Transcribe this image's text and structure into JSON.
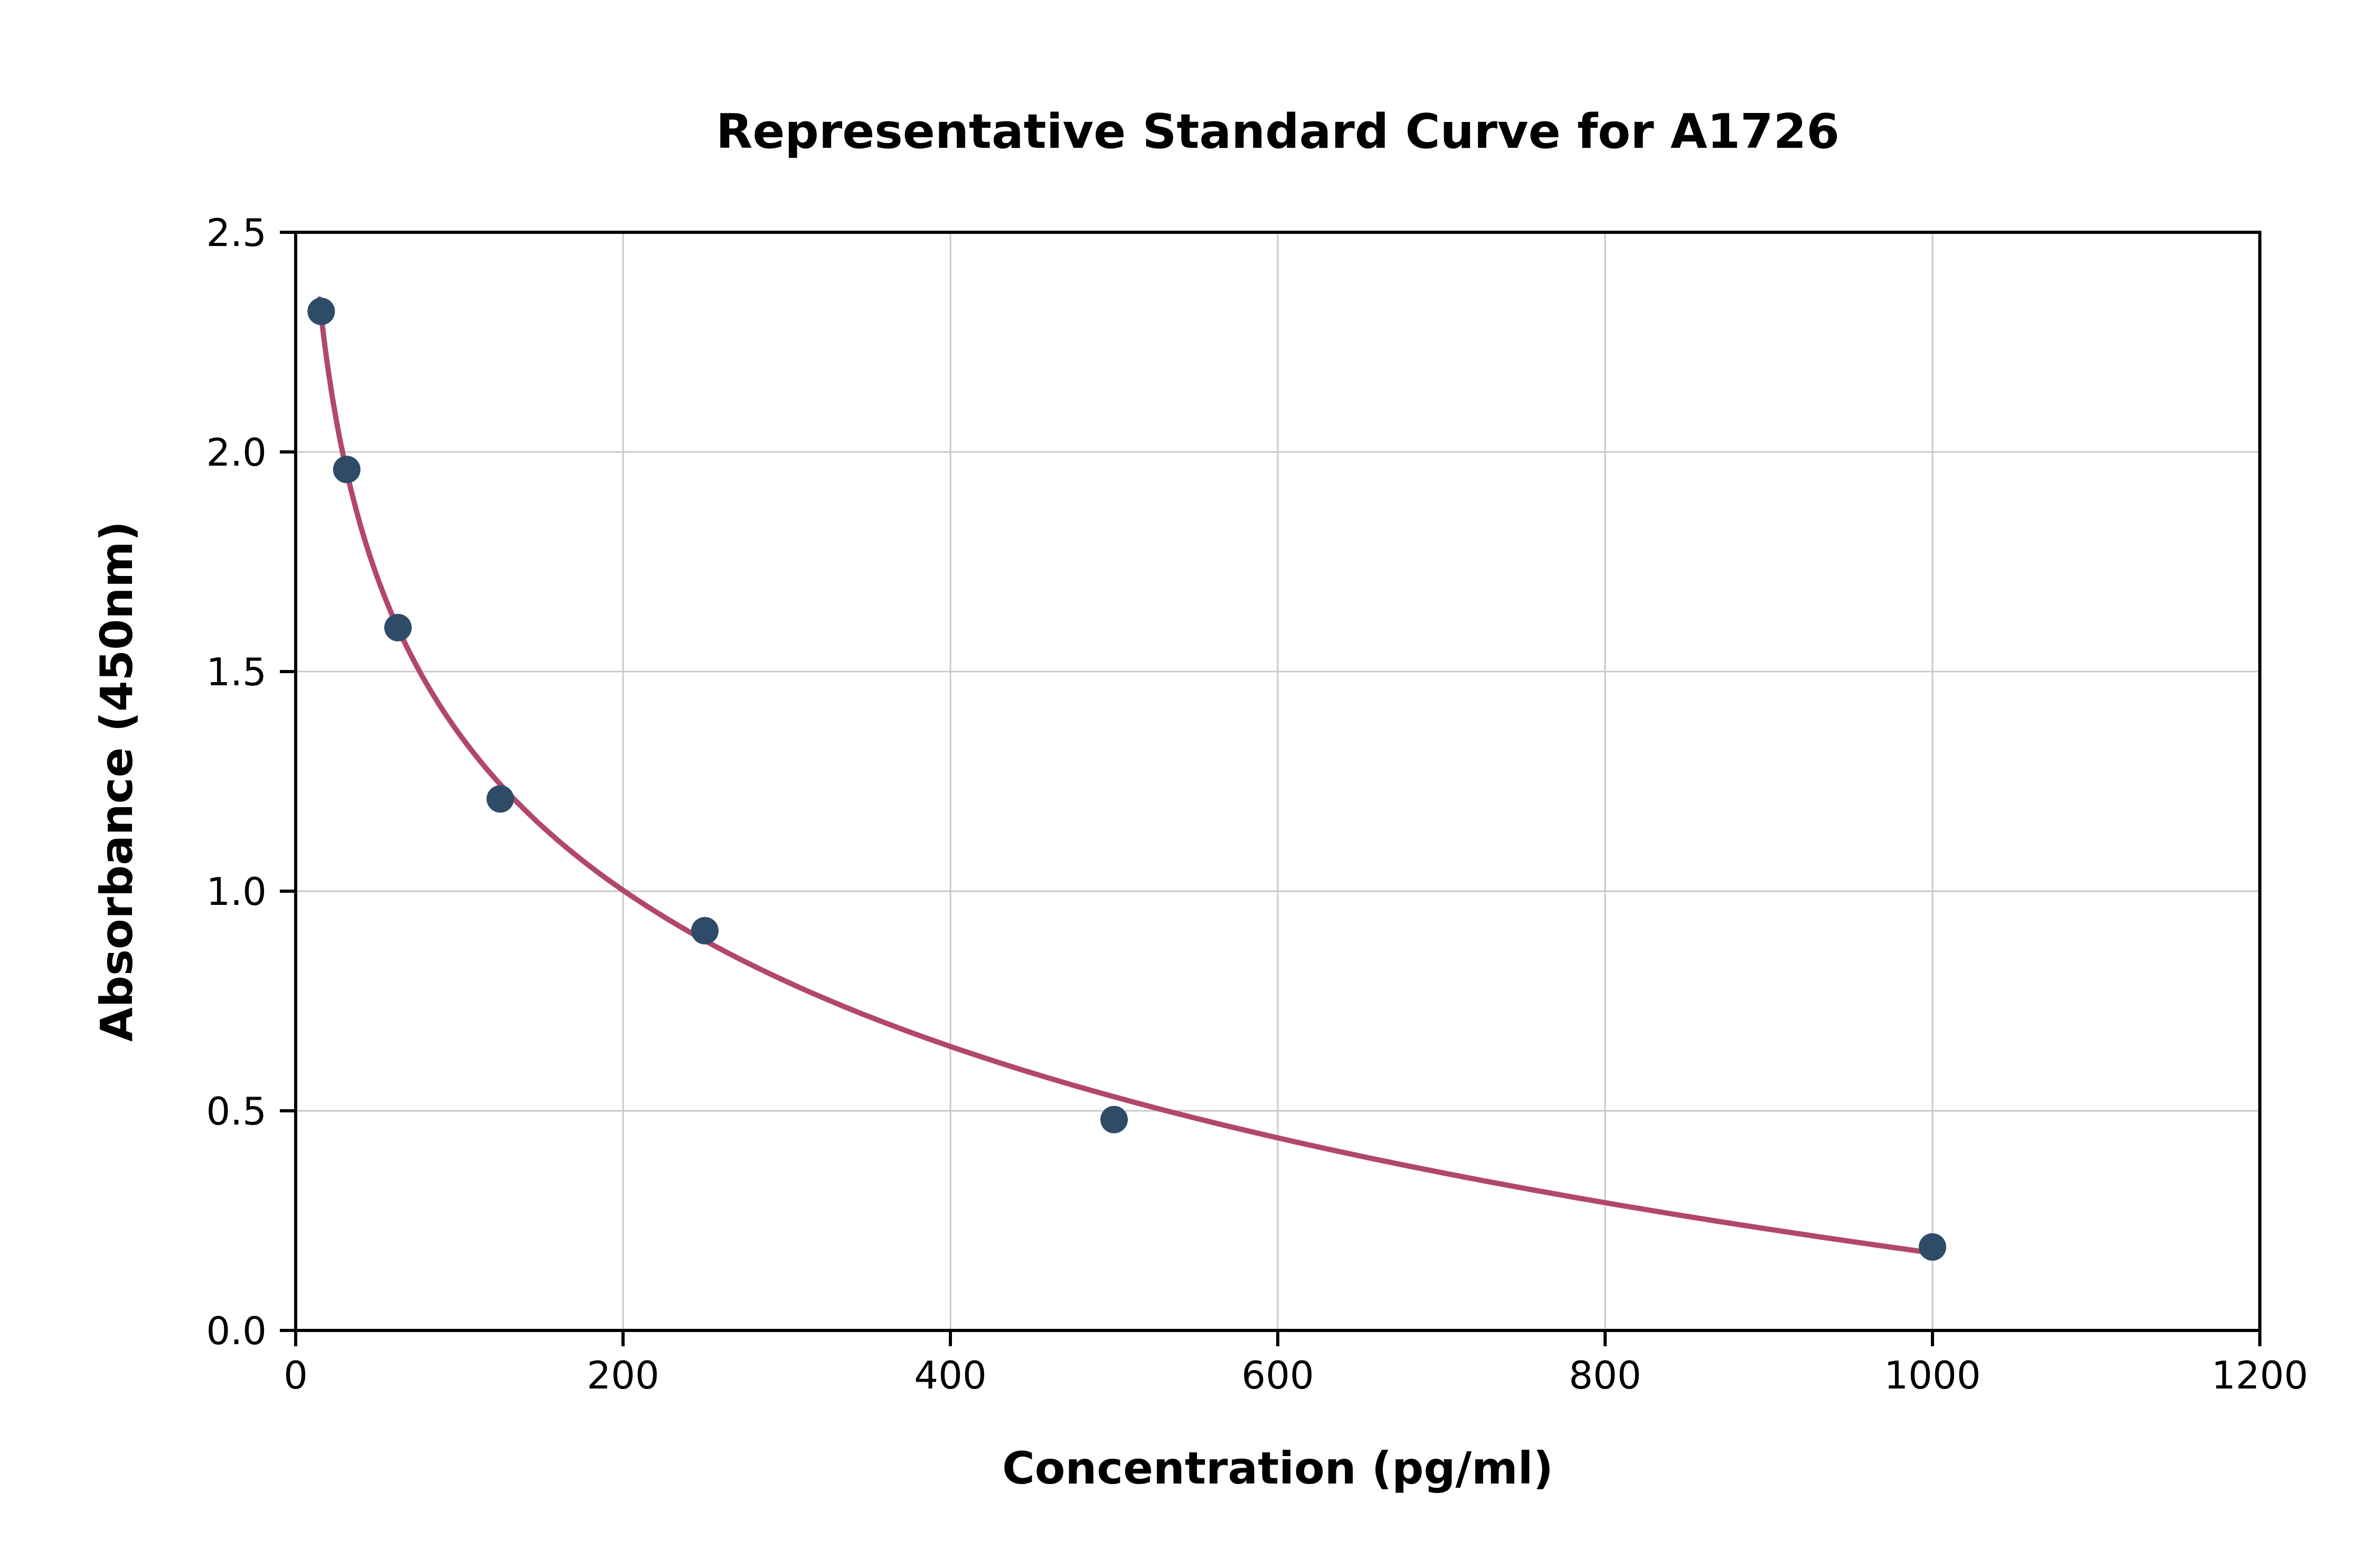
{
  "chart_data": {
    "type": "scatter",
    "title": "Representative Standard Curve for A1726",
    "xlabel": "Concentration (pg/ml)",
    "ylabel": "Absorbance (450nm)",
    "xlim": [
      0,
      1200
    ],
    "ylim": [
      0,
      2.5
    ],
    "x_ticks": [
      0,
      200,
      400,
      600,
      800,
      1000,
      1200
    ],
    "x_tick_labels": [
      "0",
      "200",
      "400",
      "600",
      "800",
      "1000",
      "1200"
    ],
    "y_ticks": [
      0,
      0.5,
      1.0,
      1.5,
      2.0,
      2.5
    ],
    "y_tick_labels": [
      "0.0",
      "0.5",
      "1.0",
      "1.5",
      "2.0",
      "2.5"
    ],
    "grid": true,
    "legend": "none",
    "points": [
      {
        "x": 15.6,
        "y": 2.32
      },
      {
        "x": 31.2,
        "y": 1.96
      },
      {
        "x": 62.5,
        "y": 1.6
      },
      {
        "x": 125,
        "y": 1.21
      },
      {
        "x": 250,
        "y": 0.91
      },
      {
        "x": 500,
        "y": 0.48
      },
      {
        "x": 1000,
        "y": 0.19
      }
    ],
    "fit_curve": {
      "type": "logarithmic-decay",
      "formula": "y = a - b * ln(x)",
      "a": 3.72,
      "b": 0.513,
      "x_start": 14.5,
      "x_end": 1000
    },
    "colors": {
      "points": "#2e4b68",
      "curve": "#b2476d",
      "grid": "#c9c9c9",
      "axis": "#000000",
      "background": "#ffffff"
    }
  }
}
